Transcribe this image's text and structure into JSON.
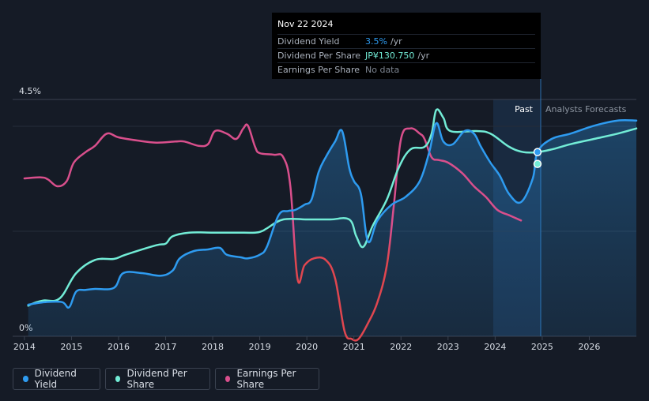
{
  "tooltip": {
    "date": "Nov 22 2024",
    "rows": [
      {
        "label": "Dividend Yield",
        "value": "3.5%",
        "unit": "/yr",
        "color": "#2e9bf0"
      },
      {
        "label": "Dividend Per Share",
        "value": "JP¥130.750",
        "unit": "/yr",
        "color": "#72ecd6"
      },
      {
        "label": "Earnings Per Share",
        "value": "No data",
        "unit": "",
        "color": "#6c737e"
      }
    ]
  },
  "legend": [
    {
      "label": "Dividend Yield",
      "color": "#2e9bf0"
    },
    {
      "label": "Dividend Per Share",
      "color": "#72ecd6"
    },
    {
      "label": "Earnings Per Share",
      "color": "#d94f8c"
    }
  ],
  "chart_data": {
    "type": "line",
    "y_top_label": "4.5%",
    "y_bottom_label": "0%",
    "ylim": [
      0,
      4.5
    ],
    "xlim": [
      2013.75,
      2027.0
    ],
    "x_ticks": [
      "2014",
      "2015",
      "2016",
      "2017",
      "2018",
      "2019",
      "2020",
      "2021",
      "2022",
      "2023",
      "2024",
      "2025",
      "2026"
    ],
    "past_label": "Past",
    "forecast_label": "Analysts Forecasts",
    "forecast_start": 2024.9,
    "shade_start": 2023.9,
    "series": [
      {
        "name": "Dividend Yield",
        "color": "#2e9bf0",
        "x": [
          2014.08,
          2014.2,
          2014.45,
          2014.8,
          2014.95,
          2015.1,
          2015.3,
          2015.5,
          2015.9,
          2016.1,
          2016.5,
          2016.9,
          2017.15,
          2017.3,
          2017.6,
          2017.9,
          2018.15,
          2018.3,
          2018.6,
          2018.75,
          2019.0,
          2019.15,
          2019.4,
          2019.6,
          2019.75,
          2019.95,
          2020.1,
          2020.25,
          2020.4,
          2020.6,
          2020.75,
          2020.9,
          2021.0,
          2021.15,
          2021.3,
          2021.5,
          2021.8,
          2022.1,
          2022.4,
          2022.6,
          2022.75,
          2022.9,
          2023.1,
          2023.35,
          2023.55,
          2023.7,
          2023.9,
          2024.1,
          2024.3,
          2024.55,
          2024.8,
          2024.9,
          2025.2,
          2025.6,
          2026.1,
          2026.6,
          2027.0
        ],
        "y": [
          0.6,
          0.62,
          0.65,
          0.65,
          0.55,
          0.85,
          0.88,
          0.9,
          0.92,
          1.2,
          1.2,
          1.15,
          1.25,
          1.48,
          1.62,
          1.65,
          1.68,
          1.55,
          1.5,
          1.48,
          1.55,
          1.7,
          2.3,
          2.38,
          2.4,
          2.5,
          2.6,
          3.12,
          3.4,
          3.7,
          3.9,
          3.2,
          2.95,
          2.7,
          1.8,
          2.2,
          2.5,
          2.65,
          2.95,
          3.5,
          4.05,
          3.7,
          3.65,
          3.9,
          3.85,
          3.6,
          3.3,
          3.05,
          2.7,
          2.55,
          3.0,
          3.5,
          3.75,
          3.85,
          4.0,
          4.1,
          4.1
        ]
      },
      {
        "name": "Dividend Per Share",
        "color": "#72ecd6",
        "x": [
          2014.08,
          2014.2,
          2014.4,
          2014.75,
          2015.1,
          2015.5,
          2015.9,
          2016.15,
          2016.8,
          2017.0,
          2017.15,
          2017.5,
          2018.0,
          2018.5,
          2018.9,
          2019.05,
          2019.15,
          2019.5,
          2020.0,
          2020.5,
          2020.9,
          2021.05,
          2021.2,
          2021.4,
          2021.7,
          2021.95,
          2022.2,
          2022.5,
          2022.65,
          2022.75,
          2022.9,
          2023.05,
          2023.6,
          2023.9,
          2024.3,
          2024.6,
          2024.9,
          2025.2,
          2025.6,
          2026.1,
          2026.6,
          2027.0
        ],
        "y": [
          0.58,
          0.63,
          0.68,
          0.72,
          1.2,
          1.45,
          1.47,
          1.55,
          1.73,
          1.76,
          1.9,
          1.97,
          1.97,
          1.97,
          1.97,
          2.0,
          2.05,
          2.22,
          2.22,
          2.22,
          2.22,
          1.9,
          1.7,
          2.1,
          2.6,
          3.2,
          3.55,
          3.6,
          3.85,
          4.3,
          4.15,
          3.9,
          3.9,
          3.85,
          3.6,
          3.5,
          3.5,
          3.55,
          3.65,
          3.75,
          3.85,
          3.95
        ]
      },
      {
        "name": "Earnings Per Share",
        "color": "#d94f8c",
        "x": [
          2014.0,
          2014.35,
          2014.5,
          2014.7,
          2014.9,
          2015.05,
          2015.3,
          2015.5,
          2015.75,
          2016.0,
          2016.4,
          2016.8,
          2017.2,
          2017.4,
          2017.7,
          2017.9,
          2018.05,
          2018.3,
          2018.5,
          2018.65,
          2018.75,
          2018.9,
          2019.0,
          2019.3,
          2019.5,
          2019.65,
          2019.8,
          2019.95,
          2020.15,
          2020.4,
          2020.6,
          2020.8,
          2020.95,
          2021.1,
          2021.3,
          2021.5,
          2021.7,
          2021.85,
          2022.0,
          2022.2,
          2022.4,
          2022.5,
          2022.65,
          2022.8,
          2023.0,
          2023.3,
          2023.55,
          2023.8,
          2024.05,
          2024.3,
          2024.55
        ],
        "y": [
          3.0,
          3.02,
          2.98,
          2.85,
          2.95,
          3.3,
          3.5,
          3.62,
          3.85,
          3.78,
          3.72,
          3.68,
          3.7,
          3.7,
          3.62,
          3.65,
          3.9,
          3.85,
          3.75,
          3.95,
          4.0,
          3.6,
          3.48,
          3.45,
          3.4,
          2.85,
          1.1,
          1.35,
          1.48,
          1.45,
          1.1,
          0.1,
          -0.05,
          -0.05,
          0.25,
          0.65,
          1.35,
          2.5,
          3.75,
          3.95,
          3.85,
          3.75,
          3.4,
          3.35,
          3.3,
          3.1,
          2.85,
          2.65,
          2.4,
          2.3,
          2.2
        ]
      }
    ],
    "markers": [
      {
        "series": "Dividend Yield",
        "x": 2024.9,
        "y": 3.5
      },
      {
        "series": "Dividend Per Share",
        "x": 2024.9,
        "y": 3.5
      }
    ]
  }
}
